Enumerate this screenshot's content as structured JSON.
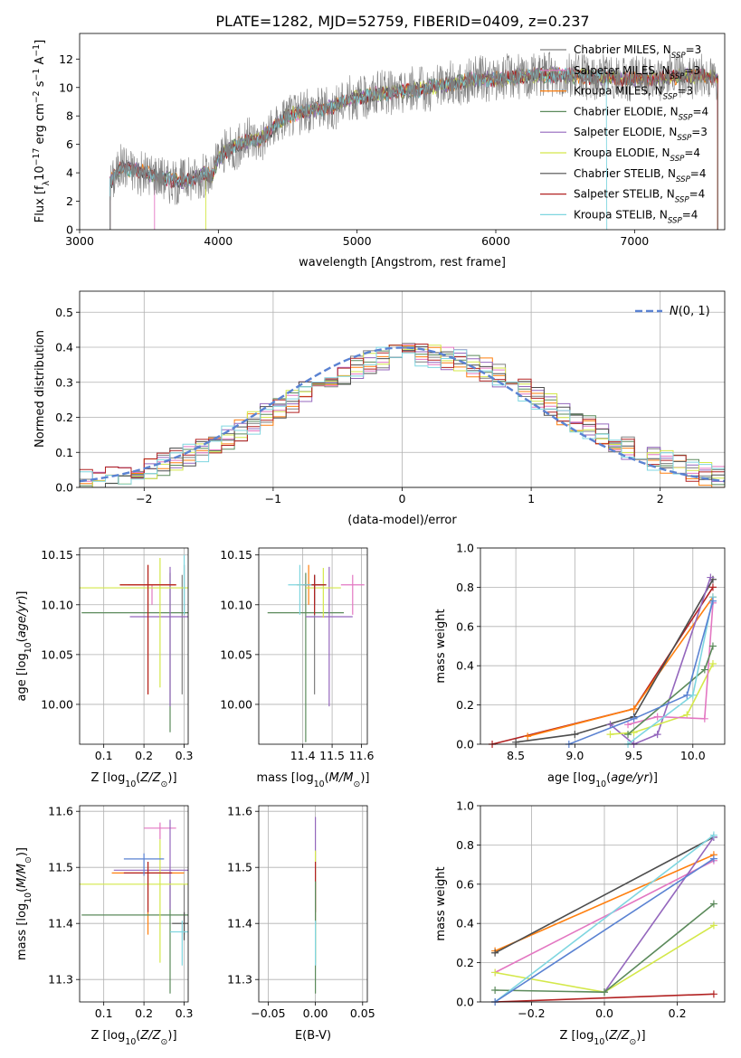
{
  "figure_title": "PLATE=1282, MJD=52759, FIBERID=0409, z=0.237",
  "colors": {
    "chabrier_miles": "#7f7f7f",
    "salpeter_miles": "#e377c2",
    "kroupa_miles": "#ff7f0e",
    "chabrier_elodie": "#5b8a5b",
    "salpeter_elodie": "#9467bd",
    "kroupa_elodie": "#d4e84a",
    "chabrier_stelib": "#4d4d4d",
    "salpeter_stelib": "#b22222",
    "kroupa_stelib": "#7fd6e0",
    "extra_blue": "#5a82d2",
    "gauss": "#5a82d2"
  },
  "chart_data": [
    {
      "id": "spectrum",
      "type": "line",
      "title": "PLATE=1282, MJD=52759, FIBERID=0409, z=0.237",
      "xlabel": "wavelength [Angstrom, rest frame]",
      "ylabel": "Flux [f$_\\lambda$10$^{-17}$ erg cm$^{-2}$ s$^{-1}$ A$^{-1}$]",
      "xlim": [
        3000,
        7650
      ],
      "ylim": [
        0,
        13.8
      ],
      "xticks": [
        3000,
        4000,
        5000,
        6000,
        7000
      ],
      "yticks": [
        0,
        2,
        4,
        6,
        8,
        10,
        12
      ],
      "grid": false,
      "legend_position": "right",
      "legend": [
        "Chabrier MILES, N_SSP=3",
        "Salpeter MILES, N_SSP=3",
        "Kroupa MILES, N_SSP=3",
        "Chabrier ELODIE, N_SSP=4",
        "Salpeter ELODIE, N_SSP=3",
        "Kroupa ELODIE, N_SSP=4",
        "Chabrier STELIB, N_SSP=4",
        "Salpeter STELIB, N_SSP=4",
        "Kroupa STELIB, N_SSP=4"
      ],
      "continuum": {
        "x": [
          3220,
          3300,
          3400,
          3500,
          3600,
          3700,
          3800,
          3900,
          3950,
          4000,
          4100,
          4200,
          4300,
          4400,
          4500,
          4600,
          4800,
          5000,
          5200,
          5400,
          5600,
          5800,
          6000,
          6200,
          6400,
          6600,
          6800,
          7000,
          7200,
          7400,
          7600
        ],
        "y": [
          3.3,
          4.4,
          4.2,
          3.9,
          3.7,
          3.4,
          3.5,
          4.0,
          3.6,
          5.0,
          5.8,
          6.2,
          6.3,
          7.2,
          8.0,
          8.3,
          8.6,
          9.3,
          9.6,
          9.8,
          10.1,
          10.5,
          10.6,
          10.8,
          10.9,
          10.8,
          10.7,
          10.6,
          10.7,
          10.8,
          10.7
        ]
      },
      "model_starts": {
        "Chabrier MILES": 3220,
        "Salpeter MILES": 3540,
        "Kroupa ELODIE": 3910,
        "Kroupa STELIB": 3220
      },
      "model_ends": {
        "Salpeter MILES": 7600,
        "Kroupa MILES": 7600,
        "Kroupa STELIB": 6800
      }
    },
    {
      "id": "residuals",
      "type": "histogram",
      "xlabel": "(data-model)/error",
      "ylabel": "Normed distribution",
      "xlim": [
        -2.5,
        2.5
      ],
      "ylim": [
        0,
        0.56
      ],
      "xticks": [
        -2,
        -1,
        0,
        1,
        2
      ],
      "yticks": [
        0.0,
        0.1,
        0.2,
        0.3,
        0.4,
        0.5
      ],
      "grid": true,
      "legend_position": "upper right",
      "legend": [
        "N(0,1)"
      ],
      "bin_width": 0.1
    },
    {
      "id": "age_vs_Z",
      "type": "errorbar",
      "xlabel": "Z [log10(Z/Zsun)]",
      "ylabel": "age [log10(age/yr)]",
      "xlim": [
        0.04,
        0.31
      ],
      "ylim": [
        9.96,
        10.157
      ],
      "xticks": [
        0.1,
        0.2,
        0.3
      ],
      "yticks": [
        10.0,
        10.05,
        10.1,
        10.15
      ],
      "points": [
        {
          "model": "Chabrier MILES",
          "x": 0.295,
          "xerr": 0.0,
          "y": 10.12,
          "yerr_lo": 0.11,
          "yerr_hi": 0.01
        },
        {
          "model": "Salpeter MILES",
          "x": 0.22,
          "xerr": 0.06,
          "y": 10.12,
          "yerr_lo": 0.02,
          "yerr_hi": 0.0
        },
        {
          "model": "Kroupa MILES",
          "x": 0.21,
          "xerr": 0.07,
          "y": 10.12,
          "yerr_lo": 0.11,
          "yerr_hi": 0.02
        },
        {
          "model": "Chabrier ELODIE",
          "x": 0.265,
          "xerr": 0.22,
          "y": 10.092,
          "yerr_lo": 0.12,
          "yerr_hi": 0.04
        },
        {
          "model": "Salpeter ELODIE",
          "x": 0.265,
          "xerr": 0.1,
          "y": 10.088,
          "yerr_lo": 0.09,
          "yerr_hi": 0.05
        },
        {
          "model": "Kroupa ELODIE",
          "x": 0.24,
          "xerr": 0.2,
          "y": 10.117,
          "yerr_lo": 0.1,
          "yerr_hi": 0.03
        },
        {
          "model": "Chabrier STELIB",
          "x": 0.3,
          "xerr": 0.0,
          "y": 10.12,
          "yerr_lo": 0.03,
          "yerr_hi": 0.02
        },
        {
          "model": "Salpeter STELIB",
          "x": 0.21,
          "xerr": 0.07,
          "y": 10.12,
          "yerr_lo": 0.11,
          "yerr_hi": 0.02
        },
        {
          "model": "Kroupa STELIB",
          "x": 0.3,
          "xerr": 0.0,
          "y": 10.12,
          "yerr_lo": 0.03,
          "yerr_hi": 0.03
        }
      ]
    },
    {
      "id": "age_vs_mass",
      "type": "errorbar",
      "xlabel": "mass [log10(M/Msun)]",
      "ylabel": "",
      "xlim": [
        11.25,
        11.62
      ],
      "ylim": [
        9.96,
        10.157
      ],
      "xticks": [
        11.4,
        11.5,
        11.6
      ],
      "yticks": [
        10.0,
        10.05,
        10.1,
        10.15
      ],
      "points": [
        {
          "model": "Chabrier MILES",
          "x": 11.44,
          "xerr": 0.0,
          "y": 10.12,
          "yerr_lo": 0.11,
          "yerr_hi": 0.01
        },
        {
          "model": "Salpeter MILES",
          "x": 11.57,
          "xerr": 0.04,
          "y": 10.12,
          "yerr_lo": 0.03,
          "yerr_hi": 0.01
        },
        {
          "model": "Kroupa MILES",
          "x": 11.42,
          "xerr": 0.04,
          "y": 10.12,
          "yerr_lo": 0.02,
          "yerr_hi": 0.02
        },
        {
          "model": "Chabrier ELODIE",
          "x": 11.41,
          "xerr": 0.13,
          "y": 10.092,
          "yerr_lo": 0.13,
          "yerr_hi": 0.04
        },
        {
          "model": "Salpeter ELODIE",
          "x": 11.49,
          "xerr": 0.08,
          "y": 10.088,
          "yerr_lo": 0.09,
          "yerr_hi": 0.05
        },
        {
          "model": "Kroupa ELODIE",
          "x": 11.47,
          "xerr": 0.06,
          "y": 10.117,
          "yerr_lo": 0.03,
          "yerr_hi": 0.02
        },
        {
          "model": "Chabrier STELIB",
          "x": 11.44,
          "xerr": 0.04,
          "y": 10.12,
          "yerr_lo": 0.02,
          "yerr_hi": 0.01
        },
        {
          "model": "Salpeter STELIB",
          "x": 11.44,
          "xerr": 0.04,
          "y": 10.12,
          "yerr_lo": 0.03,
          "yerr_hi": 0.01
        },
        {
          "model": "Kroupa STELIB",
          "x": 11.39,
          "xerr": 0.04,
          "y": 10.12,
          "yerr_lo": 0.03,
          "yerr_hi": 0.02
        }
      ]
    },
    {
      "id": "massweight_vs_age",
      "type": "line",
      "xlabel": "age [log10(age/yr)]",
      "ylabel": "mass weight",
      "xlim": [
        8.2,
        10.27
      ],
      "ylim": [
        0,
        1.0
      ],
      "xticks": [
        8.5,
        9.0,
        9.5,
        10.0
      ],
      "yticks": [
        0.0,
        0.2,
        0.4,
        0.6,
        0.8,
        1.0
      ],
      "grid": true,
      "series": [
        {
          "model": "Salpeter STELIB",
          "x": [
            8.3,
            9.5,
            10.17
          ],
          "y": [
            0.0,
            0.18,
            0.8
          ]
        },
        {
          "model": "Kroupa MILES",
          "x": [
            8.6,
            9.5,
            10.17
          ],
          "y": [
            0.04,
            0.18,
            0.75
          ]
        },
        {
          "model": "Chabrier STELIB",
          "x": [
            8.5,
            9.0,
            9.5,
            10.17
          ],
          "y": [
            0.01,
            0.05,
            0.14,
            0.84
          ]
        },
        {
          "model": "Salpeter ELODIE",
          "x": [
            9.3,
            9.5,
            9.7,
            10.15
          ],
          "y": [
            0.1,
            0.0,
            0.05,
            0.85
          ]
        },
        {
          "model": "Kroupa ELODIE",
          "x": [
            9.3,
            9.5,
            9.95,
            10.17
          ],
          "y": [
            0.05,
            0.06,
            0.15,
            0.41
          ]
        },
        {
          "model": "Salpeter MILES",
          "x": [
            9.45,
            9.7,
            10.1,
            10.17
          ],
          "y": [
            0.1,
            0.14,
            0.13,
            0.72
          ]
        },
        {
          "model": "Chabrier ELODIE",
          "x": [
            9.45,
            10.1,
            10.17
          ],
          "y": [
            0.05,
            0.38,
            0.5
          ]
        },
        {
          "model": "Kroupa STELIB",
          "x": [
            9.45,
            10.0,
            10.17
          ],
          "y": [
            0.0,
            0.25,
            0.75
          ]
        },
        {
          "model": "extra",
          "x": [
            8.95,
            9.5,
            9.95,
            10.17
          ],
          "y": [
            0.0,
            0.13,
            0.25,
            0.73
          ]
        }
      ]
    },
    {
      "id": "mass_vs_Z",
      "type": "errorbar",
      "xlabel": "Z [log10(Z/Zsun)]",
      "ylabel": "mass [log10(M/Msun)]",
      "xlim": [
        0.04,
        0.31
      ],
      "ylim": [
        11.26,
        11.61
      ],
      "xticks": [
        0.1,
        0.2,
        0.3
      ],
      "yticks": [
        11.3,
        11.4,
        11.5,
        11.6
      ],
      "points": [
        {
          "model": "Chabrier MILES",
          "x": 0.3,
          "xerr": 0.0,
          "y": 11.44,
          "yerr_lo": 0.06,
          "yerr_hi": 0.03
        },
        {
          "model": "Salpeter MILES",
          "x": 0.24,
          "xerr": 0.04,
          "y": 11.57,
          "yerr_lo": 0.02,
          "yerr_hi": 0.01
        },
        {
          "model": "Kroupa MILES",
          "x": 0.21,
          "xerr": 0.09,
          "y": 11.49,
          "yerr_lo": 0.11,
          "yerr_hi": 0.02
        },
        {
          "model": "Chabrier ELODIE",
          "x": 0.265,
          "xerr": 0.22,
          "y": 11.415,
          "yerr_lo": 0.14,
          "yerr_hi": 0.06
        },
        {
          "model": "Salpeter ELODIE",
          "x": 0.265,
          "xerr": 0.14,
          "y": 11.495,
          "yerr_lo": 0.07,
          "yerr_hi": 0.09
        },
        {
          "model": "Kroupa ELODIE",
          "x": 0.24,
          "xerr": 0.2,
          "y": 11.47,
          "yerr_lo": 0.14,
          "yerr_hi": 0.08
        },
        {
          "model": "Chabrier STELIB",
          "x": 0.3,
          "xerr": 0.03,
          "y": 11.4,
          "yerr_lo": 0.03,
          "yerr_hi": 0.02
        },
        {
          "model": "Salpeter STELIB",
          "x": 0.21,
          "xerr": 0.06,
          "y": 11.49,
          "yerr_lo": 0.07,
          "yerr_hi": 0.02
        },
        {
          "model": "Kroupa STELIB",
          "x": 0.295,
          "xerr": 0.03,
          "y": 11.385,
          "yerr_lo": 0.06,
          "yerr_hi": 0.02
        },
        {
          "model": "extra",
          "x": 0.2,
          "xerr": 0.05,
          "y": 11.515,
          "yerr_lo": 0.03,
          "yerr_hi": 0.01
        }
      ]
    },
    {
      "id": "mass_vs_EBV",
      "type": "errorbar",
      "xlabel": "E(B-V)",
      "ylabel": "",
      "xlim": [
        -0.06,
        0.055
      ],
      "ylim": [
        11.26,
        11.61
      ],
      "xticks": [
        -0.05,
        0.0,
        0.05
      ],
      "yticks": [
        11.3,
        11.4,
        11.5,
        11.6
      ],
      "points": [
        {
          "model": "Salpeter ELODIE",
          "x": 0.0,
          "xerr": 0.0,
          "y": 11.5,
          "yerr_lo": 0.1,
          "yerr_hi": 0.09
        },
        {
          "model": "Kroupa ELODIE",
          "x": 0.0,
          "xerr": 0.0,
          "y": 11.47,
          "yerr_lo": 0.14,
          "yerr_hi": 0.06
        },
        {
          "model": "Salpeter STELIB",
          "x": 0.0,
          "xerr": 0.0,
          "y": 11.49,
          "yerr_lo": 0.07,
          "yerr_hi": 0.02
        },
        {
          "model": "Chabrier ELODIE",
          "x": 0.0,
          "xerr": 0.0,
          "y": 11.415,
          "yerr_lo": 0.14,
          "yerr_hi": 0.06
        },
        {
          "model": "Kroupa STELIB",
          "x": 0.0,
          "xerr": 0.0,
          "y": 11.385,
          "yerr_lo": 0.06,
          "yerr_hi": 0.02
        }
      ]
    },
    {
      "id": "massweight_vs_Z",
      "type": "line",
      "xlabel": "Z [log10(Z/Zsun)]",
      "ylabel": "mass weight",
      "xlim": [
        -0.34,
        0.33
      ],
      "ylim": [
        0,
        1.0
      ],
      "xticks": [
        -0.2,
        0.0,
        0.2
      ],
      "yticks": [
        0.0,
        0.2,
        0.4,
        0.6,
        0.8,
        1.0
      ],
      "grid": true,
      "series": [
        {
          "model": "Kroupa MILES",
          "x": [
            -0.3,
            0.3
          ],
          "y": [
            0.26,
            0.75
          ]
        },
        {
          "model": "Chabrier STELIB",
          "x": [
            -0.3,
            0.3
          ],
          "y": [
            0.25,
            0.84
          ]
        },
        {
          "model": "Salpeter MILES",
          "x": [
            -0.3,
            0.3
          ],
          "y": [
            0.15,
            0.72
          ]
        },
        {
          "model": "Kroupa ELODIE",
          "x": [
            -0.3,
            0.0,
            0.3
          ],
          "y": [
            0.15,
            0.05,
            0.39
          ]
        },
        {
          "model": "Salpeter ELODIE",
          "x": [
            0.0,
            0.3
          ],
          "y": [
            0.05,
            0.84
          ]
        },
        {
          "model": "Chabrier ELODIE",
          "x": [
            -0.3,
            0.0,
            0.3
          ],
          "y": [
            0.06,
            0.05,
            0.5
          ]
        },
        {
          "model": "Salpeter STELIB",
          "x": [
            -0.3,
            0.3
          ],
          "y": [
            0.0,
            0.04
          ]
        },
        {
          "model": "Kroupa STELIB",
          "x": [
            -0.3,
            0.3
          ],
          "y": [
            0.0,
            0.85
          ]
        },
        {
          "model": "extra",
          "x": [
            -0.3,
            0.3
          ],
          "y": [
            0.0,
            0.73
          ]
        }
      ]
    }
  ]
}
